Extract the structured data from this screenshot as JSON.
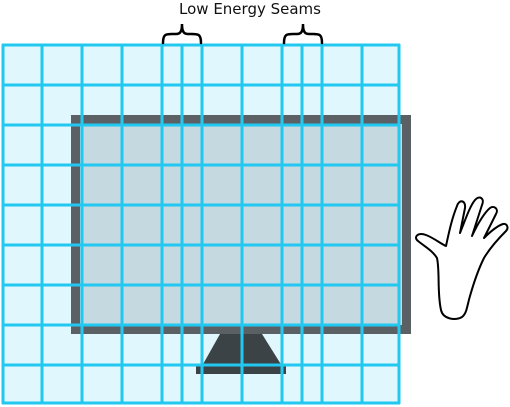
{
  "title": "Low Energy Seams",
  "colors": {
    "grid": "#22c8f0",
    "grid_fill": "#dff7fd",
    "monitor_frame": "#5a6063",
    "monitor_screen": "#c4d9e0",
    "stand": "#3c4346",
    "hand_stroke": "#000000"
  },
  "icons": {
    "hand": "hand-outline-icon",
    "monitor": "monitor-icon",
    "seam_brace": "curly-brace-icon"
  }
}
